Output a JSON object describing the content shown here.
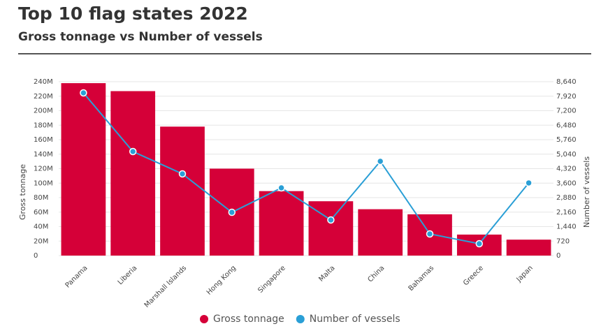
{
  "chart_data": {
    "type": "bar-line",
    "title": "Top 10 flag states 2022",
    "subtitle": "Gross tonnage vs Number of vessels",
    "y_label": "Gross tonnage",
    "y2_label": "Number of vessels",
    "categories": [
      "Panama",
      "Liberia",
      "Marshall Islands",
      "Hong Kong",
      "Singapore",
      "Malta",
      "China",
      "Bahamas",
      "Greece",
      "Japan"
    ],
    "series": [
      {
        "name": "Gross tonnage",
        "type": "bar",
        "color": "#d50038",
        "values": [
          238000000,
          227000000,
          178000000,
          120000000,
          89000000,
          75000000,
          64000000,
          57000000,
          29000000,
          22000000
        ]
      },
      {
        "name": "Number of vessels",
        "type": "line",
        "axis": "y2",
        "color": "#2a9fd6",
        "values": [
          8085,
          5170,
          4060,
          2150,
          3365,
          1770,
          4685,
          1075,
          590,
          3610
        ]
      }
    ],
    "ylim": [
      0,
      240000000
    ],
    "yticks": [
      0,
      {
        "value": 20000000,
        "label": "20M"
      },
      {
        "value": 40000000,
        "label": "40M"
      },
      {
        "value": 60000000,
        "label": "60M"
      },
      {
        "value": 80000000,
        "label": "80M"
      },
      {
        "value": 100000000,
        "label": "100M"
      },
      {
        "value": 120000000,
        "label": "120M"
      },
      {
        "value": 140000000,
        "label": "140M"
      },
      {
        "value": 160000000,
        "label": "160M"
      },
      {
        "value": 180000000,
        "label": "180M"
      },
      {
        "value": 200000000,
        "label": "200M"
      },
      {
        "value": 220000000,
        "label": "220M"
      },
      {
        "value": 240000000,
        "label": "240M"
      }
    ],
    "y2lim": [
      0,
      8640
    ],
    "y2ticks": [
      0,
      720,
      {
        "value": 1440,
        "label": "1,440"
      },
      {
        "value": 2160,
        "label": "2,160"
      },
      {
        "value": 2880,
        "label": "2,880"
      },
      {
        "value": 3600,
        "label": "3,600"
      },
      {
        "value": 4320,
        "label": "4,320"
      },
      {
        "value": 5040,
        "label": "5,040"
      },
      {
        "value": 5760,
        "label": "5,760"
      },
      {
        "value": 6480,
        "label": "6,480"
      },
      {
        "value": 7200,
        "label": "7,200"
      },
      {
        "value": 7920,
        "label": "7,920"
      },
      {
        "value": 8640,
        "label": "8,640"
      }
    ],
    "grid": true
  }
}
